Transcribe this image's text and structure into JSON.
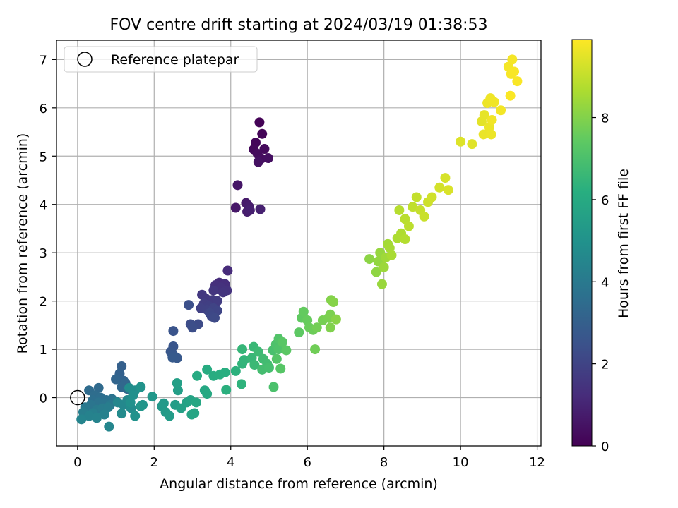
{
  "chart_data": {
    "type": "scatter",
    "title": "FOV centre drift starting at 2024/03/19 01:38:53",
    "xlabel": "Angular distance from reference (arcmin)",
    "ylabel": "Rotation from reference (arcmin)",
    "xlim": [
      -0.55,
      12.1
    ],
    "ylim": [
      -1.0,
      7.4
    ],
    "x_ticks": [
      0,
      2,
      4,
      6,
      8,
      10,
      12
    ],
    "y_ticks": [
      0,
      1,
      2,
      3,
      4,
      5,
      6,
      7
    ],
    "grid": true,
    "legend": {
      "position": "top-left",
      "entries": [
        "Reference platepar"
      ]
    },
    "reference_point": {
      "x": 0,
      "y": 0,
      "label": "Reference platepar"
    },
    "colorbar": {
      "label": "Hours from first FF file",
      "colormap": "viridis",
      "range": [
        0,
        9.9
      ],
      "ticks": [
        0,
        2,
        4,
        6,
        8
      ]
    },
    "points": [
      {
        "x": 4.75,
        "y": 5.7,
        "h": 0.05
      },
      {
        "x": 4.82,
        "y": 5.46,
        "h": 0.1
      },
      {
        "x": 4.65,
        "y": 5.28,
        "h": 0.15
      },
      {
        "x": 4.6,
        "y": 5.14,
        "h": 0.2
      },
      {
        "x": 4.88,
        "y": 5.15,
        "h": 0.25
      },
      {
        "x": 4.7,
        "y": 5.05,
        "h": 0.3
      },
      {
        "x": 4.8,
        "y": 4.95,
        "h": 0.35
      },
      {
        "x": 4.98,
        "y": 4.96,
        "h": 0.4
      },
      {
        "x": 4.72,
        "y": 4.88,
        "h": 0.45
      },
      {
        "x": 4.18,
        "y": 4.4,
        "h": 0.6
      },
      {
        "x": 4.13,
        "y": 3.93,
        "h": 0.65
      },
      {
        "x": 4.4,
        "y": 4.03,
        "h": 0.7
      },
      {
        "x": 4.48,
        "y": 3.95,
        "h": 0.75
      },
      {
        "x": 4.43,
        "y": 3.85,
        "h": 0.8
      },
      {
        "x": 4.5,
        "y": 3.88,
        "h": 0.85
      },
      {
        "x": 4.77,
        "y": 3.9,
        "h": 0.9
      },
      {
        "x": 3.92,
        "y": 2.63,
        "h": 1.2
      },
      {
        "x": 3.7,
        "y": 2.38,
        "h": 1.25
      },
      {
        "x": 3.85,
        "y": 2.35,
        "h": 1.3
      },
      {
        "x": 3.6,
        "y": 2.33,
        "h": 1.35
      },
      {
        "x": 3.75,
        "y": 2.28,
        "h": 1.4
      },
      {
        "x": 3.9,
        "y": 2.22,
        "h": 1.45
      },
      {
        "x": 3.8,
        "y": 2.18,
        "h": 1.5
      },
      {
        "x": 3.55,
        "y": 2.22,
        "h": 1.55
      },
      {
        "x": 3.25,
        "y": 2.13,
        "h": 1.6
      },
      {
        "x": 3.35,
        "y": 2.05,
        "h": 1.65
      },
      {
        "x": 3.52,
        "y": 2.02,
        "h": 1.7
      },
      {
        "x": 3.65,
        "y": 2.0,
        "h": 1.75
      },
      {
        "x": 3.3,
        "y": 1.95,
        "h": 1.8
      },
      {
        "x": 3.42,
        "y": 1.9,
        "h": 1.85
      },
      {
        "x": 3.22,
        "y": 1.85,
        "h": 1.9
      },
      {
        "x": 3.38,
        "y": 1.82,
        "h": 1.95
      },
      {
        "x": 3.55,
        "y": 1.85,
        "h": 2.0
      },
      {
        "x": 3.65,
        "y": 1.8,
        "h": 2.05
      },
      {
        "x": 3.45,
        "y": 1.75,
        "h": 2.1
      },
      {
        "x": 3.5,
        "y": 1.68,
        "h": 2.15
      },
      {
        "x": 3.58,
        "y": 1.65,
        "h": 2.2
      },
      {
        "x": 3.15,
        "y": 1.52,
        "h": 2.25
      },
      {
        "x": 2.95,
        "y": 1.52,
        "h": 2.3
      },
      {
        "x": 3.0,
        "y": 1.45,
        "h": 2.35
      },
      {
        "x": 2.9,
        "y": 1.92,
        "h": 2.4
      },
      {
        "x": 2.5,
        "y": 1.38,
        "h": 2.55
      },
      {
        "x": 2.5,
        "y": 1.06,
        "h": 2.6
      },
      {
        "x": 2.43,
        "y": 0.95,
        "h": 2.65
      },
      {
        "x": 2.5,
        "y": 0.88,
        "h": 2.7
      },
      {
        "x": 2.6,
        "y": 0.82,
        "h": 2.75
      },
      {
        "x": 2.48,
        "y": 0.83,
        "h": 2.8
      },
      {
        "x": 1.15,
        "y": 0.65,
        "h": 3.0
      },
      {
        "x": 1.1,
        "y": 0.5,
        "h": 3.05
      },
      {
        "x": 1.05,
        "y": 0.4,
        "h": 3.1
      },
      {
        "x": 1.2,
        "y": 0.35,
        "h": 3.15
      },
      {
        "x": 1.0,
        "y": 0.38,
        "h": 3.2
      },
      {
        "x": 1.25,
        "y": 0.3,
        "h": 3.25
      },
      {
        "x": 1.15,
        "y": 0.22,
        "h": 3.3
      },
      {
        "x": 1.3,
        "y": 0.18,
        "h": 3.35
      },
      {
        "x": 0.55,
        "y": 0.2,
        "h": 3.4
      },
      {
        "x": 0.3,
        "y": 0.15,
        "h": 3.45
      },
      {
        "x": 0.45,
        "y": 0.05,
        "h": 3.5
      },
      {
        "x": 0.6,
        "y": 0.0,
        "h": 3.55
      },
      {
        "x": 0.4,
        "y": -0.05,
        "h": 3.6
      },
      {
        "x": 0.75,
        "y": -0.05,
        "h": 3.65
      },
      {
        "x": 0.9,
        "y": -0.03,
        "h": 3.7
      },
      {
        "x": 0.55,
        "y": -0.1,
        "h": 3.75
      },
      {
        "x": 0.7,
        "y": -0.12,
        "h": 3.8
      },
      {
        "x": 0.35,
        "y": -0.15,
        "h": 3.85
      },
      {
        "x": 1.0,
        "y": -0.08,
        "h": 3.9
      },
      {
        "x": 0.85,
        "y": -0.15,
        "h": 3.95
      },
      {
        "x": 0.2,
        "y": -0.2,
        "h": 4.0
      },
      {
        "x": 0.5,
        "y": -0.25,
        "h": 4.05
      },
      {
        "x": 0.65,
        "y": -0.22,
        "h": 4.1
      },
      {
        "x": 0.8,
        "y": -0.2,
        "h": 4.15
      },
      {
        "x": 0.15,
        "y": -0.3,
        "h": 4.2
      },
      {
        "x": 0.4,
        "y": -0.32,
        "h": 4.25
      },
      {
        "x": 0.7,
        "y": -0.35,
        "h": 4.3
      },
      {
        "x": 0.3,
        "y": -0.38,
        "h": 4.35
      },
      {
        "x": 0.5,
        "y": -0.42,
        "h": 4.4
      },
      {
        "x": 0.1,
        "y": -0.45,
        "h": 4.45
      },
      {
        "x": 0.82,
        "y": -0.6,
        "h": 4.5
      },
      {
        "x": 1.05,
        "y": -0.1,
        "h": 4.55
      },
      {
        "x": 1.2,
        "y": -0.15,
        "h": 4.6
      },
      {
        "x": 1.3,
        "y": -0.05,
        "h": 4.65
      },
      {
        "x": 1.15,
        "y": -0.33,
        "h": 4.7
      },
      {
        "x": 1.4,
        "y": -0.22,
        "h": 4.75
      },
      {
        "x": 1.35,
        "y": 0.2,
        "h": 4.8
      },
      {
        "x": 1.5,
        "y": 0.15,
        "h": 4.85
      },
      {
        "x": 1.45,
        "y": 0.05,
        "h": 4.9
      },
      {
        "x": 1.38,
        "y": -0.1,
        "h": 4.95
      },
      {
        "x": 1.5,
        "y": -0.38,
        "h": 5.0
      },
      {
        "x": 1.65,
        "y": 0.22,
        "h": 5.05
      },
      {
        "x": 1.7,
        "y": -0.15,
        "h": 5.1
      },
      {
        "x": 1.65,
        "y": -0.18,
        "h": 5.15
      },
      {
        "x": 1.95,
        "y": 0.02,
        "h": 5.2
      },
      {
        "x": 2.2,
        "y": -0.18,
        "h": 5.25
      },
      {
        "x": 2.25,
        "y": -0.12,
        "h": 5.3
      },
      {
        "x": 2.3,
        "y": -0.3,
        "h": 5.35
      },
      {
        "x": 2.4,
        "y": -0.38,
        "h": 5.4
      },
      {
        "x": 2.55,
        "y": -0.15,
        "h": 5.45
      },
      {
        "x": 2.62,
        "y": 0.15,
        "h": 5.5
      },
      {
        "x": 2.6,
        "y": 0.3,
        "h": 5.55
      },
      {
        "x": 2.7,
        "y": -0.22,
        "h": 5.6
      },
      {
        "x": 2.85,
        "y": -0.1,
        "h": 5.65
      },
      {
        "x": 2.95,
        "y": -0.05,
        "h": 5.7
      },
      {
        "x": 2.98,
        "y": -0.35,
        "h": 5.75
      },
      {
        "x": 3.05,
        "y": -0.32,
        "h": 5.8
      },
      {
        "x": 3.1,
        "y": -0.1,
        "h": 5.85
      },
      {
        "x": 3.32,
        "y": 0.15,
        "h": 5.9
      },
      {
        "x": 3.38,
        "y": 0.08,
        "h": 5.95
      },
      {
        "x": 3.12,
        "y": 0.45,
        "h": 6.0
      },
      {
        "x": 3.38,
        "y": 0.58,
        "h": 6.05
      },
      {
        "x": 3.55,
        "y": 0.45,
        "h": 6.1
      },
      {
        "x": 3.72,
        "y": 0.48,
        "h": 6.15
      },
      {
        "x": 3.85,
        "y": 0.52,
        "h": 6.2
      },
      {
        "x": 3.88,
        "y": 0.16,
        "h": 6.25
      },
      {
        "x": 4.13,
        "y": 0.55,
        "h": 6.3
      },
      {
        "x": 4.28,
        "y": 0.28,
        "h": 6.35
      },
      {
        "x": 4.3,
        "y": 0.7,
        "h": 6.4
      },
      {
        "x": 4.35,
        "y": 0.78,
        "h": 6.45
      },
      {
        "x": 4.3,
        "y": 1.0,
        "h": 6.5
      },
      {
        "x": 4.55,
        "y": 0.82,
        "h": 6.55
      },
      {
        "x": 4.6,
        "y": 1.05,
        "h": 6.6
      },
      {
        "x": 4.62,
        "y": 0.68,
        "h": 6.65
      },
      {
        "x": 4.72,
        "y": 0.95,
        "h": 6.7
      },
      {
        "x": 4.85,
        "y": 0.8,
        "h": 6.75
      },
      {
        "x": 4.95,
        "y": 0.7,
        "h": 6.8
      },
      {
        "x": 4.82,
        "y": 0.58,
        "h": 6.85
      },
      {
        "x": 5.0,
        "y": 0.62,
        "h": 6.9
      },
      {
        "x": 5.1,
        "y": 0.98,
        "h": 6.95
      },
      {
        "x": 5.12,
        "y": 0.22,
        "h": 7.0
      },
      {
        "x": 5.18,
        "y": 1.1,
        "h": 7.05
      },
      {
        "x": 5.25,
        "y": 1.0,
        "h": 7.1
      },
      {
        "x": 5.25,
        "y": 1.22,
        "h": 7.15
      },
      {
        "x": 5.2,
        "y": 0.8,
        "h": 7.2
      },
      {
        "x": 5.3,
        "y": 0.6,
        "h": 7.25
      },
      {
        "x": 5.35,
        "y": 1.15,
        "h": 7.3
      },
      {
        "x": 5.45,
        "y": 0.98,
        "h": 7.35
      },
      {
        "x": 5.78,
        "y": 1.35,
        "h": 7.4
      },
      {
        "x": 5.85,
        "y": 1.65,
        "h": 7.45
      },
      {
        "x": 5.9,
        "y": 1.78,
        "h": 7.5
      },
      {
        "x": 6.0,
        "y": 1.6,
        "h": 7.55
      },
      {
        "x": 6.05,
        "y": 1.45,
        "h": 7.6
      },
      {
        "x": 6.15,
        "y": 1.4,
        "h": 7.65
      },
      {
        "x": 6.2,
        "y": 1.0,
        "h": 7.7
      },
      {
        "x": 6.25,
        "y": 1.45,
        "h": 7.75
      },
      {
        "x": 6.4,
        "y": 1.6,
        "h": 7.8
      },
      {
        "x": 6.55,
        "y": 1.65,
        "h": 7.85
      },
      {
        "x": 6.6,
        "y": 1.72,
        "h": 7.9
      },
      {
        "x": 6.6,
        "y": 1.45,
        "h": 7.95
      },
      {
        "x": 6.62,
        "y": 2.02,
        "h": 8.0
      },
      {
        "x": 6.68,
        "y": 1.98,
        "h": 8.05
      },
      {
        "x": 6.75,
        "y": 1.62,
        "h": 8.1
      },
      {
        "x": 7.62,
        "y": 2.87,
        "h": 8.15
      },
      {
        "x": 7.8,
        "y": 2.6,
        "h": 8.2
      },
      {
        "x": 7.85,
        "y": 2.82,
        "h": 8.25
      },
      {
        "x": 7.9,
        "y": 3.0,
        "h": 8.3
      },
      {
        "x": 7.95,
        "y": 2.35,
        "h": 8.35
      },
      {
        "x": 8.0,
        "y": 2.7,
        "h": 8.4
      },
      {
        "x": 8.05,
        "y": 2.9,
        "h": 8.45
      },
      {
        "x": 8.1,
        "y": 3.18,
        "h": 8.5
      },
      {
        "x": 8.15,
        "y": 3.1,
        "h": 8.55
      },
      {
        "x": 8.2,
        "y": 2.95,
        "h": 8.6
      },
      {
        "x": 8.35,
        "y": 3.3,
        "h": 8.65
      },
      {
        "x": 8.45,
        "y": 3.4,
        "h": 8.7
      },
      {
        "x": 8.55,
        "y": 3.28,
        "h": 8.75
      },
      {
        "x": 8.4,
        "y": 3.88,
        "h": 8.8
      },
      {
        "x": 8.55,
        "y": 3.7,
        "h": 8.85
      },
      {
        "x": 8.65,
        "y": 3.55,
        "h": 8.9
      },
      {
        "x": 8.75,
        "y": 3.95,
        "h": 8.95
      },
      {
        "x": 8.85,
        "y": 4.15,
        "h": 9.0
      },
      {
        "x": 8.95,
        "y": 3.88,
        "h": 9.05
      },
      {
        "x": 9.05,
        "y": 3.75,
        "h": 9.1
      },
      {
        "x": 9.15,
        "y": 4.05,
        "h": 9.15
      },
      {
        "x": 9.25,
        "y": 4.15,
        "h": 9.2
      },
      {
        "x": 9.45,
        "y": 4.35,
        "h": 9.25
      },
      {
        "x": 9.6,
        "y": 4.55,
        "h": 9.3
      },
      {
        "x": 9.68,
        "y": 4.3,
        "h": 9.35
      },
      {
        "x": 10.0,
        "y": 5.3,
        "h": 9.4
      },
      {
        "x": 10.3,
        "y": 5.25,
        "h": 9.45
      },
      {
        "x": 10.55,
        "y": 5.72,
        "h": 9.5
      },
      {
        "x": 10.62,
        "y": 5.85,
        "h": 9.55
      },
      {
        "x": 10.6,
        "y": 5.45,
        "h": 9.6
      },
      {
        "x": 10.75,
        "y": 5.6,
        "h": 9.62
      },
      {
        "x": 10.8,
        "y": 5.45,
        "h": 9.64
      },
      {
        "x": 10.7,
        "y": 6.1,
        "h": 9.66
      },
      {
        "x": 10.78,
        "y": 6.2,
        "h": 9.68
      },
      {
        "x": 10.88,
        "y": 6.12,
        "h": 9.7
      },
      {
        "x": 10.82,
        "y": 5.75,
        "h": 9.72
      },
      {
        "x": 11.05,
        "y": 5.95,
        "h": 9.74
      },
      {
        "x": 11.25,
        "y": 6.85,
        "h": 9.76
      },
      {
        "x": 11.35,
        "y": 7.0,
        "h": 9.78
      },
      {
        "x": 11.32,
        "y": 6.7,
        "h": 9.8
      },
      {
        "x": 11.4,
        "y": 6.75,
        "h": 9.82
      },
      {
        "x": 11.48,
        "y": 6.55,
        "h": 9.84
      },
      {
        "x": 11.3,
        "y": 6.25,
        "h": 9.86
      }
    ]
  }
}
